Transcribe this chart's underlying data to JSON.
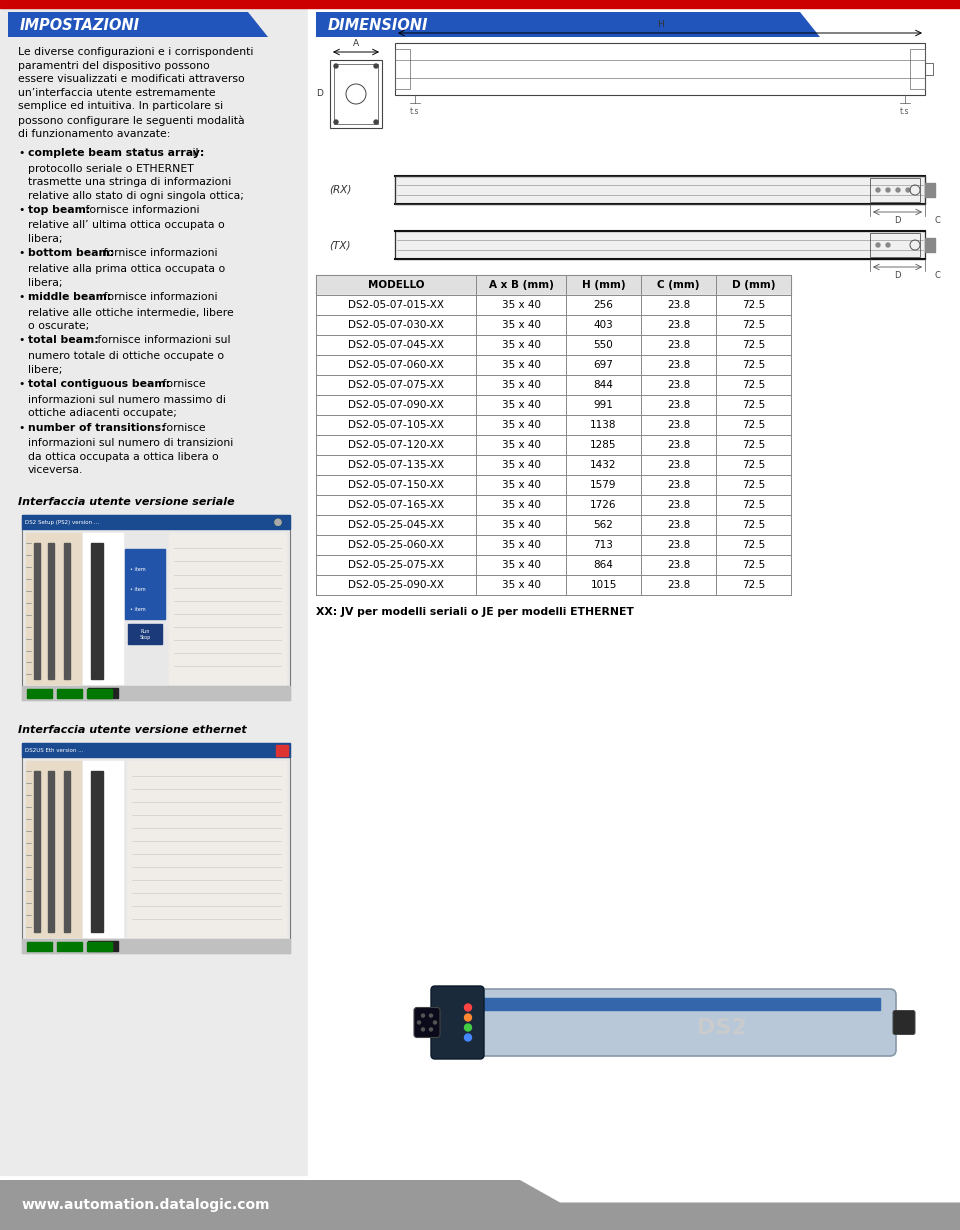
{
  "white": "#ffffff",
  "light_gray_bg": "#ebebeb",
  "right_bg": "#f5f5f5",
  "blue_header": "#2255bb",
  "title_left": "IMPOSTAZIONI",
  "title_right": "DIMENSIONI",
  "footer_text": "www.automation.datalogic.com",
  "footer_bg": "#aaaaaa",
  "red_top": "#cc0000",
  "table_headers": [
    "MODELLO",
    "A x B (mm)",
    "H (mm)",
    "C (mm)",
    "D (mm)"
  ],
  "table_rows": [
    [
      "DS2-05-07-015-XX",
      "35 x 40",
      "256",
      "23.8",
      "72.5"
    ],
    [
      "DS2-05-07-030-XX",
      "35 x 40",
      "403",
      "23.8",
      "72.5"
    ],
    [
      "DS2-05-07-045-XX",
      "35 x 40",
      "550",
      "23.8",
      "72.5"
    ],
    [
      "DS2-05-07-060-XX",
      "35 x 40",
      "697",
      "23.8",
      "72.5"
    ],
    [
      "DS2-05-07-075-XX",
      "35 x 40",
      "844",
      "23.8",
      "72.5"
    ],
    [
      "DS2-05-07-090-XX",
      "35 x 40",
      "991",
      "23.8",
      "72.5"
    ],
    [
      "DS2-05-07-105-XX",
      "35 x 40",
      "1138",
      "23.8",
      "72.5"
    ],
    [
      "DS2-05-07-120-XX",
      "35 x 40",
      "1285",
      "23.8",
      "72.5"
    ],
    [
      "DS2-05-07-135-XX",
      "35 x 40",
      "1432",
      "23.8",
      "72.5"
    ],
    [
      "DS2-05-07-150-XX",
      "35 x 40",
      "1579",
      "23.8",
      "72.5"
    ],
    [
      "DS2-05-07-165-XX",
      "35 x 40",
      "1726",
      "23.8",
      "72.5"
    ],
    [
      "DS2-05-25-045-XX",
      "35 x 40",
      "562",
      "23.8",
      "72.5"
    ],
    [
      "DS2-05-25-060-XX",
      "35 x 40",
      "713",
      "23.8",
      "72.5"
    ],
    [
      "DS2-05-25-075-XX",
      "35 x 40",
      "864",
      "23.8",
      "72.5"
    ],
    [
      "DS2-05-25-090-XX",
      "35 x 40",
      "1015",
      "23.8",
      "72.5"
    ]
  ],
  "table_note": "XX: JV per modelli seriali o JE per modelli ETHERNET",
  "serial_label": "Interfaccia utente versione seriale",
  "ethernet_label": "Interfaccia utente versione ethernet"
}
